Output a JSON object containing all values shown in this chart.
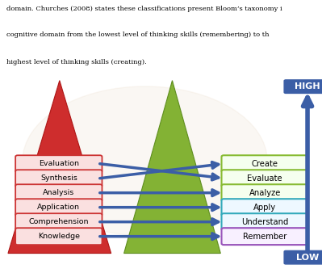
{
  "old_labels": [
    "Evaluation",
    "Synthesis",
    "Analysis",
    "Application",
    "Comprehension",
    "Knowledge"
  ],
  "new_labels": [
    "Create",
    "Evaluate",
    "Analyze",
    "Apply",
    "Understand",
    "Remember"
  ],
  "old_box_facecolor": "#FAE0E0",
  "old_box_edge": "#CC3333",
  "new_box_facecolors": [
    "#F5FFEE",
    "#F5FFEE",
    "#F5FFEE",
    "#EEF8FF",
    "#EEF8FF",
    "#F8F0FF"
  ],
  "new_box_edge_colors": [
    "#88BB33",
    "#88BB33",
    "#88BB33",
    "#33AABB",
    "#33AABB",
    "#9955BB"
  ],
  "arrow_color": "#3B5EA6",
  "red_triangle_color": "#CC2222",
  "red_triangle_edge": "#AA1111",
  "green_triangle_color": "#7DAF2A",
  "green_triangle_edge": "#5A8A1A",
  "high_box_color": "#3B5EA6",
  "low_box_color": "#3B5EA6",
  "high_text": "HIGH",
  "low_text": "LOW",
  "bg_color": "#FFFFFF",
  "header_text": "domain. Churches (2008) states these classifications present Bloom’s taxonomy i",
  "sub_text1": "cognitive domain from the lowest level of thinking skills (remembering) to th",
  "sub_text2": "highest level of thinking skills (creating)."
}
